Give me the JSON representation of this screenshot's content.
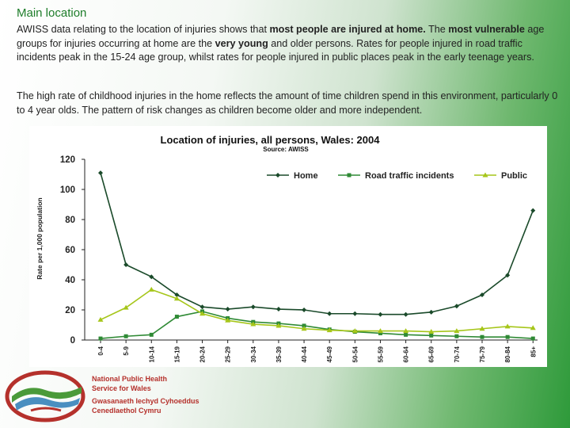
{
  "slide": {
    "title": "Main location",
    "para1": {
      "t1": "AWISS data relating to the location of injuries shows that ",
      "b1": "most people are injured at home.",
      "t2": " The ",
      "b2": "most vulnerable",
      "t3": " age groups for injuries occurring at home are the ",
      "b3": "very young",
      "t4": " and older persons. Rates for people injured in road traffic incidents peak in the 15-24 age group, whilst rates for people injured in public places peak in the early teenage years."
    },
    "para2": "The high rate of childhood injuries in the home reflects the amount of time children spend in this environment, particularly 0 to 4 year olds. The pattern of risk changes as children become older and more independent."
  },
  "logo": {
    "en_line1": "National Public Health",
    "en_line2": "Service for Wales",
    "cy_line1": "Gwasanaeth Iechyd Cyhoeddus",
    "cy_line2": "Cenedlaethol Cymru",
    "colors": {
      "red": "#b5312c",
      "green": "#4a9a3a",
      "blue": "#4a8fc0"
    }
  },
  "chart_data": {
    "type": "line",
    "title": "Location of injuries, all persons, Wales: 2004",
    "subtitle": "Source: AWISS",
    "xlabel": "",
    "ylabel": "Rate per 1,000 population",
    "ylim": [
      0,
      120
    ],
    "yticks": [
      0,
      20,
      40,
      60,
      80,
      100,
      120
    ],
    "legend_position": "top-right",
    "categories": [
      "0-4",
      "5-9",
      "10-14",
      "15-19",
      "20-24",
      "25-29",
      "30-34",
      "35-39",
      "40-44",
      "45-49",
      "50-54",
      "55-59",
      "60-64",
      "65-69",
      "70-74",
      "75-79",
      "80-84",
      "85+"
    ],
    "series": [
      {
        "name": "Home",
        "color": "#1a4a2a",
        "marker": "diamond",
        "values": [
          111,
          50,
          42,
          30,
          22,
          20.5,
          22,
          20.5,
          20,
          17.5,
          17.5,
          17,
          17,
          18.5,
          22.5,
          30,
          43,
          86
        ]
      },
      {
        "name": "Road traffic incidents",
        "color": "#2f8a35",
        "marker": "square",
        "values": [
          1,
          2.5,
          3.5,
          15.5,
          19,
          14.5,
          12,
          11,
          9.5,
          7,
          5.5,
          4.5,
          3.5,
          3,
          2.5,
          2,
          2,
          1
        ]
      },
      {
        "name": "Public",
        "color": "#a6c61a",
        "marker": "triangle",
        "values": [
          13.5,
          21.5,
          33.5,
          27.5,
          17.5,
          13,
          10.5,
          9.5,
          7.5,
          6.5,
          6,
          6,
          6,
          5.5,
          6,
          7.5,
          9,
          8
        ]
      }
    ]
  }
}
